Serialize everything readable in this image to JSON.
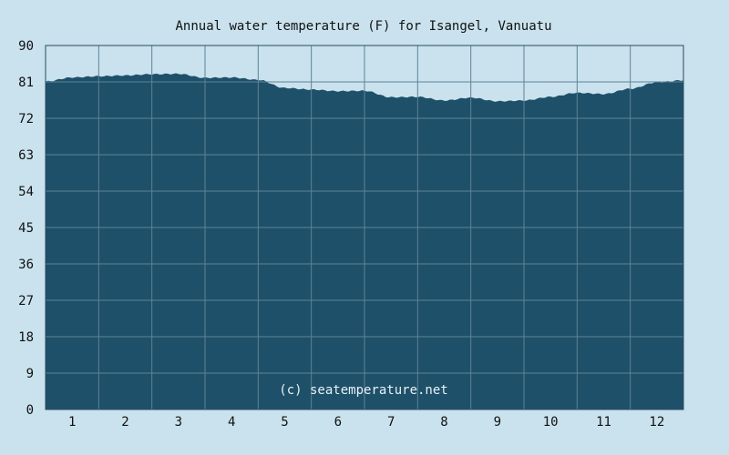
{
  "chart_data": {
    "type": "area",
    "title": "Annual water temperature (F) for Isangel, Vanuatu",
    "credit": "(c) seatemperature.net",
    "xlabel": "",
    "ylabel": "",
    "xlim": [
      0.5,
      12.5
    ],
    "ylim": [
      0,
      90
    ],
    "yticks": [
      "0",
      "9",
      "18",
      "27",
      "36",
      "45",
      "54",
      "63",
      "72",
      "81",
      "90"
    ],
    "xticks": [
      "1",
      "2",
      "3",
      "4",
      "5",
      "6",
      "7",
      "8",
      "9",
      "10",
      "11",
      "12"
    ],
    "grid": true,
    "x": [
      0.5,
      1.0,
      1.5,
      2.0,
      2.5,
      3.0,
      3.5,
      4.0,
      4.5,
      5.0,
      5.5,
      6.0,
      6.5,
      7.0,
      7.5,
      8.0,
      8.5,
      9.0,
      9.5,
      10.0,
      10.5,
      11.0,
      11.5,
      12.0,
      12.5
    ],
    "values": [
      81.1,
      82.1,
      82.4,
      82.6,
      82.9,
      83.0,
      82.0,
      82.1,
      81.5,
      79.5,
      79.1,
      78.7,
      78.8,
      77.2,
      77.3,
      76.4,
      77.1,
      76.2,
      76.4,
      77.3,
      78.3,
      78.0,
      79.3,
      80.9,
      81.4
    ],
    "colors": {
      "fill": "#1e5069",
      "grid": "#5e8396",
      "background": "#c9e2ee",
      "border": "#2a4a5c"
    }
  }
}
